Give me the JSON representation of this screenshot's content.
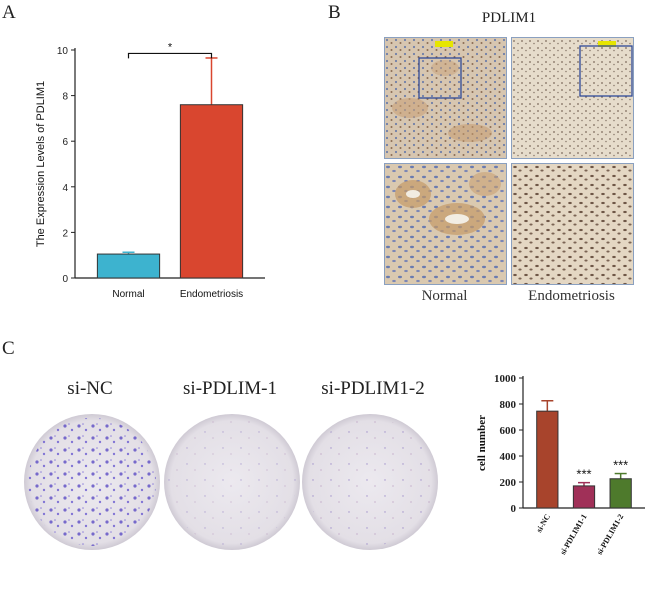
{
  "panels": {
    "a": {
      "label": "A"
    },
    "b": {
      "label": "B",
      "title": "PDLIM1",
      "captions": [
        "Normal",
        "Endometriosis"
      ]
    },
    "c": {
      "label": "C",
      "plate_titles": [
        "si-NC",
        "si-PDLIM-1",
        "si-PDLIM1-2"
      ]
    }
  },
  "chart_data": [
    {
      "type": "bar",
      "title": "",
      "xlabel": "",
      "ylabel": "The Expression Levels of PDLIM1",
      "categories": [
        "Normal",
        "Endometriosis"
      ],
      "values": [
        1.05,
        7.6
      ],
      "errors": [
        0.08,
        2.05
      ],
      "ylim": [
        0,
        10
      ],
      "yticks": [
        "0",
        "2",
        "4",
        "6",
        "8",
        "10"
      ],
      "colors": [
        "#3db3cf",
        "#d9462f"
      ],
      "significance": "*"
    },
    {
      "type": "bar",
      "title": "",
      "xlabel": "",
      "ylabel": "cell number",
      "categories": [
        "si-NC",
        "si-PDLIM1-1",
        "si-PDLIM1-2"
      ],
      "values": [
        745,
        170,
        225
      ],
      "errors": [
        80,
        25,
        40
      ],
      "ylim": [
        0,
        1000
      ],
      "yticks": [
        "0",
        "200",
        "400",
        "600",
        "800",
        "1000"
      ],
      "colors": [
        "#a8442c",
        "#a03058",
        "#4e7a2c"
      ],
      "annotations": [
        "",
        "***",
        "***"
      ]
    }
  ]
}
